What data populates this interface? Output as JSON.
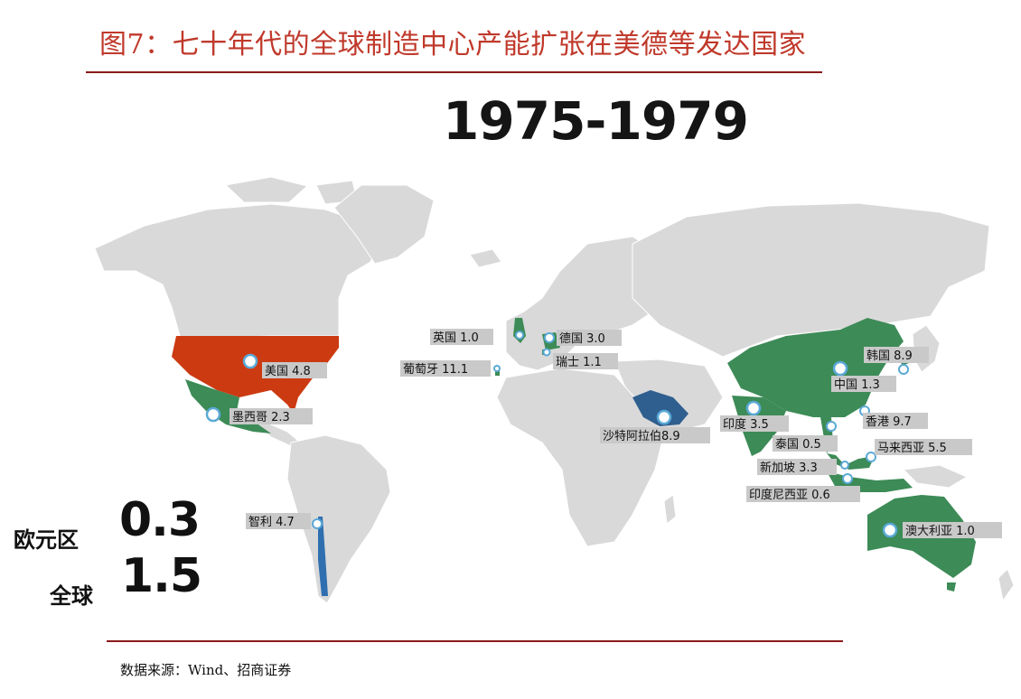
{
  "title": "图7：七十年代的全球制造中心产能扩张在美德等发达国家",
  "period": "1975-1979",
  "colors": {
    "land": "#d9d9d9",
    "high": "#3d8b57",
    "saudi": "#2f5f8f",
    "usa": "#cc3a12",
    "title": "#c0392b"
  },
  "countries": [
    {
      "name": "英国",
      "value": "1.0"
    },
    {
      "name": "德国",
      "value": "3.0"
    },
    {
      "name": "瑞士",
      "value": "1.1"
    },
    {
      "name": "葡萄牙",
      "value": "11.1"
    },
    {
      "name": "美国",
      "value": "4.8"
    },
    {
      "name": "墨西哥",
      "value": "2.3"
    },
    {
      "name": "沙特阿拉伯",
      "value": "8.9"
    },
    {
      "name": "韩国",
      "value": "8.9"
    },
    {
      "name": "中国",
      "value": "1.3"
    },
    {
      "name": "印度",
      "value": "3.5"
    },
    {
      "name": "香港",
      "value": "9.7"
    },
    {
      "name": "泰国",
      "value": "0.5"
    },
    {
      "name": "马来西亚",
      "value": "5.5"
    },
    {
      "name": "新加坡",
      "value": "3.3"
    },
    {
      "name": "印度尼西亚",
      "value": "0.6"
    },
    {
      "name": "澳大利亚",
      "value": "1.0"
    },
    {
      "name": "智利",
      "value": "4.7"
    }
  ],
  "stats": [
    {
      "label": "欧元区",
      "value": "0.3"
    },
    {
      "label": "全球",
      "value": "1.5"
    }
  ],
  "source": "数据来源：Wind、招商证券"
}
